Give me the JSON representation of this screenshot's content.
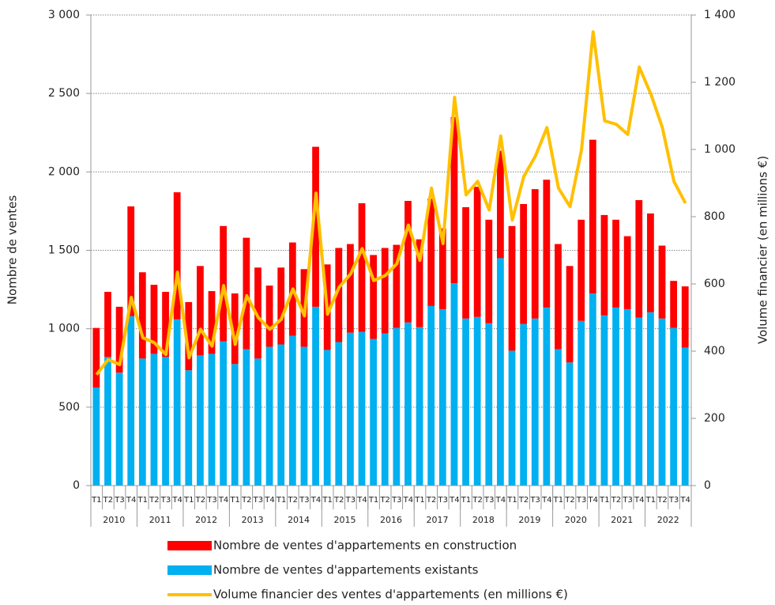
{
  "chart_data": {
    "type": "bar",
    "y_axis_label": "Nombre de ventes",
    "y2_axis_label": "Volume financier (en millions €)",
    "categories": [
      "T1",
      "T2",
      "T3",
      "T4",
      "T1",
      "T2",
      "T3",
      "T4",
      "T1",
      "T2",
      "T3",
      "T4",
      "T1",
      "T2",
      "T3",
      "T4",
      "T1",
      "T2",
      "T3",
      "T4",
      "T1",
      "T2",
      "T3",
      "T4",
      "T1",
      "T2",
      "T3",
      "T4",
      "T1",
      "T2",
      "T3",
      "T4",
      "T1",
      "T2",
      "T3",
      "T4",
      "T1",
      "T2",
      "T3",
      "T4",
      "T1",
      "T2",
      "T3",
      "T4",
      "T1",
      "T2",
      "T3",
      "T4",
      "T1",
      "T2",
      "T3",
      "T4"
    ],
    "groups": [
      "2010",
      "2011",
      "2012",
      "2013",
      "2014",
      "2015",
      "2016",
      "2017",
      "2018",
      "2019",
      "2020",
      "2021",
      "2022"
    ],
    "stacked": true,
    "series": [
      {
        "name": "Nombre de ventes d'appartements en construction",
        "color": "#ff0000",
        "values": [
          380,
          415,
          420,
          700,
          550,
          440,
          415,
          810,
          435,
          570,
          400,
          735,
          450,
          710,
          580,
          390,
          490,
          595,
          495,
          1020,
          545,
          600,
          565,
          820,
          535,
          545,
          530,
          775,
          560,
          685,
          515,
          1060,
          710,
          830,
          660,
          685,
          795,
          765,
          825,
          815,
          670,
          615,
          645,
          980,
          640,
          560,
          465,
          750,
          630,
          465,
          300,
          390
        ]
      },
      {
        "name": "Nombre de ventes d'appartements existants",
        "color": "#00b0f0",
        "values": [
          625,
          820,
          720,
          1080,
          810,
          840,
          820,
          1060,
          735,
          830,
          840,
          920,
          775,
          870,
          810,
          885,
          900,
          955,
          885,
          1140,
          865,
          915,
          975,
          980,
          935,
          970,
          1005,
          1040,
          1010,
          1145,
          1125,
          1290,
          1065,
          1075,
          1035,
          1450,
          860,
          1030,
          1065,
          1135,
          870,
          785,
          1050,
          1225,
          1085,
          1135,
          1125,
          1070,
          1105,
          1065,
          1005,
          880
        ]
      },
      {
        "name": "Volume financier des ventes d'appartements (en millions €)",
        "color": "#ffc000",
        "axis": "y2",
        "type": "line",
        "values": [
          330,
          375,
          360,
          560,
          440,
          425,
          390,
          635,
          380,
          465,
          415,
          595,
          420,
          565,
          500,
          465,
          495,
          585,
          505,
          870,
          510,
          590,
          630,
          705,
          610,
          625,
          660,
          775,
          670,
          885,
          720,
          1155,
          865,
          905,
          820,
          1040,
          790,
          920,
          980,
          1065,
          885,
          830,
          1000,
          1350,
          1085,
          1075,
          1045,
          1245,
          1165,
          1065,
          905,
          840
        ]
      }
    ],
    "ylim": [
      0,
      3000
    ],
    "yticks": [
      0,
      500,
      {
        "value": 1000,
        "label": "1 000"
      },
      {
        "value": 1500,
        "label": "1 500"
      },
      {
        "value": 2000,
        "label": "2 000"
      },
      {
        "value": 2500,
        "label": "2 500"
      },
      {
        "value": 3000,
        "label": "3 000"
      }
    ],
    "y2lim": [
      0,
      1400
    ],
    "y2ticks": [
      0,
      200,
      400,
      600,
      800,
      {
        "value": 1000,
        "label": "1 000"
      },
      {
        "value": 1200,
        "label": "1 200"
      },
      {
        "value": 1400,
        "label": "1 400"
      }
    ],
    "grid": true
  }
}
